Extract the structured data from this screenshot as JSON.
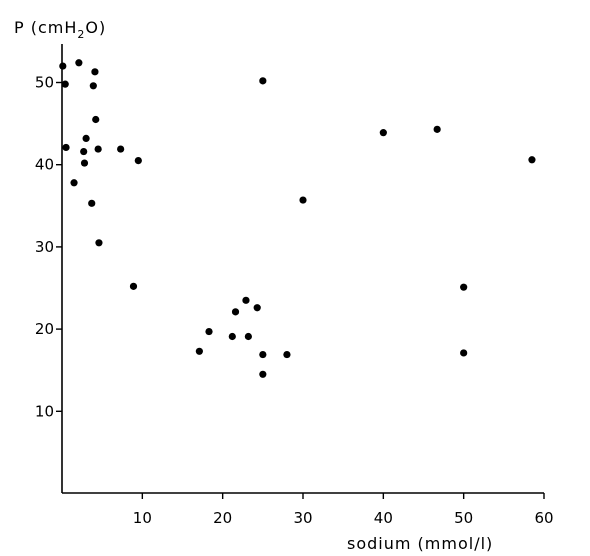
{
  "chart_data": {
    "type": "scatter",
    "title": "",
    "xlabel": "sodium (mmol/l)",
    "ylabel_main": "P (cmH",
    "ylabel_sub": "2",
    "ylabel_end": "O)",
    "xlim": [
      0,
      60
    ],
    "ylim": [
      0,
      55
    ],
    "x_ticks": [
      10,
      20,
      30,
      40,
      50,
      60
    ],
    "y_ticks": [
      10,
      20,
      30,
      40,
      50
    ],
    "grid": false,
    "legend": "none",
    "marker_color": "#000000",
    "series": [
      {
        "points": [
          {
            "x": 0.1,
            "y": 52.0
          },
          {
            "x": 0.4,
            "y": 49.8
          },
          {
            "x": 0.5,
            "y": 42.1
          },
          {
            "x": 1.5,
            "y": 37.8
          },
          {
            "x": 2.1,
            "y": 52.4
          },
          {
            "x": 2.7,
            "y": 41.6
          },
          {
            "x": 2.8,
            "y": 40.2
          },
          {
            "x": 3.0,
            "y": 43.2
          },
          {
            "x": 3.7,
            "y": 35.3
          },
          {
            "x": 3.9,
            "y": 49.6
          },
          {
            "x": 4.1,
            "y": 51.3
          },
          {
            "x": 4.2,
            "y": 45.5
          },
          {
            "x": 4.5,
            "y": 41.9
          },
          {
            "x": 4.6,
            "y": 30.5
          },
          {
            "x": 7.3,
            "y": 41.9
          },
          {
            "x": 8.9,
            "y": 25.2
          },
          {
            "x": 9.5,
            "y": 40.5
          },
          {
            "x": 17.1,
            "y": 17.3
          },
          {
            "x": 18.3,
            "y": 19.7
          },
          {
            "x": 21.2,
            "y": 19.1
          },
          {
            "x": 21.6,
            "y": 22.1
          },
          {
            "x": 22.9,
            "y": 23.5
          },
          {
            "x": 23.2,
            "y": 19.1
          },
          {
            "x": 24.3,
            "y": 22.6
          },
          {
            "x": 25.0,
            "y": 50.2
          },
          {
            "x": 25.0,
            "y": 16.9
          },
          {
            "x": 25.0,
            "y": 14.5
          },
          {
            "x": 28.0,
            "y": 16.9
          },
          {
            "x": 30.0,
            "y": 35.7
          },
          {
            "x": 40.0,
            "y": 43.9
          },
          {
            "x": 46.7,
            "y": 44.3
          },
          {
            "x": 50.0,
            "y": 25.1
          },
          {
            "x": 50.0,
            "y": 17.1
          },
          {
            "x": 58.5,
            "y": 40.6
          }
        ]
      }
    ]
  }
}
